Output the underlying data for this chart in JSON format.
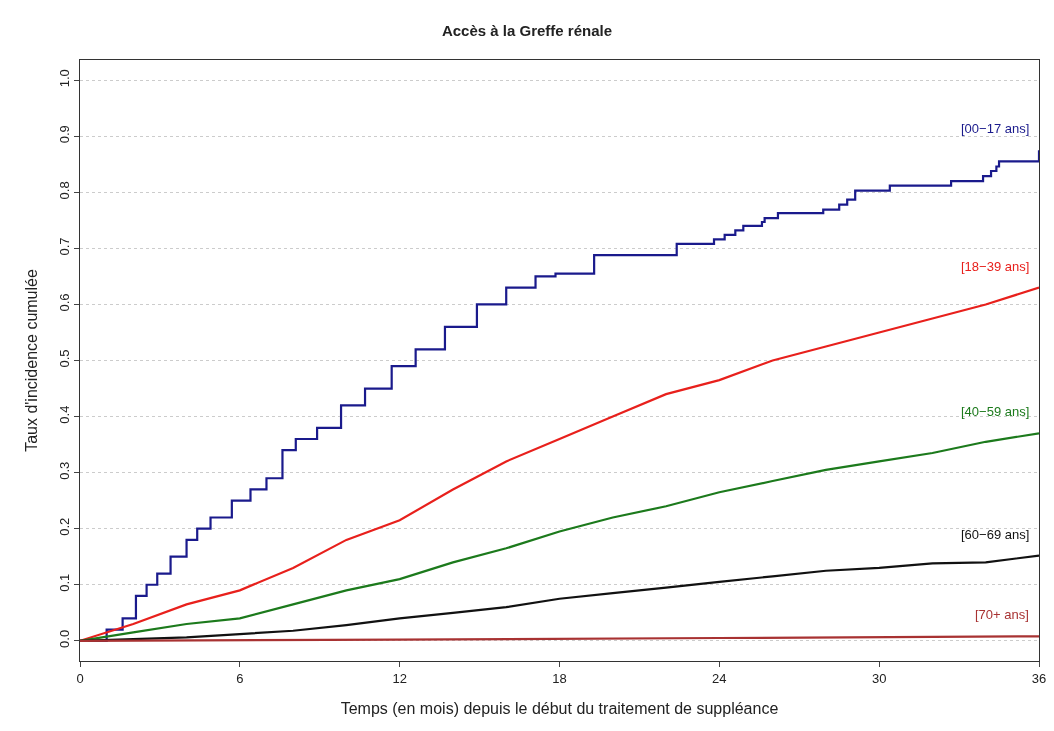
{
  "chart_data": {
    "type": "line",
    "title": "Accès à la Greffe rénale",
    "xlabel": "Temps (en mois) depuis le début du traitement de suppléance",
    "ylabel": "Taux d'incidence cumulée",
    "xlim": [
      0,
      36
    ],
    "xticks": [
      0,
      6,
      12,
      18,
      24,
      30,
      36
    ],
    "ylim": [
      -0.036,
      1.036
    ],
    "yticks": [
      {
        "value": 0,
        "label": "0.0"
      },
      0.1,
      0.2,
      0.3,
      0.4,
      0.5,
      0.6,
      0.7,
      0.8,
      0.9,
      {
        "value": 1,
        "label": "1.0"
      }
    ],
    "grid": "y",
    "legend": false,
    "series": [
      {
        "name": "[00−17 ans]",
        "color": "#1a1a8c",
        "type": "step",
        "x": [
          0,
          1.0,
          1.6,
          2.1,
          2.5,
          2.9,
          3.4,
          4.0,
          4.4,
          4.9,
          5.7,
          6.4,
          7.0,
          7.6,
          8.1,
          8.9,
          9.8,
          10.7,
          11.7,
          12.6,
          13.7,
          14.9,
          16.0,
          17.1,
          17.85,
          19.3,
          22.4,
          23.8,
          24.2,
          24.6,
          24.9,
          25.6,
          25.7,
          26.2,
          27.9,
          28.5,
          28.8,
          29.1,
          30.4,
          32.7,
          33.9,
          34.2,
          34.4,
          34.5,
          36
        ],
        "values": [
          0,
          0.02,
          0.04,
          0.08,
          0.1,
          0.12,
          0.15,
          0.18,
          0.2,
          0.22,
          0.25,
          0.27,
          0.29,
          0.34,
          0.36,
          0.38,
          0.42,
          0.45,
          0.49,
          0.52,
          0.56,
          0.6,
          0.63,
          0.65,
          0.655,
          0.688,
          0.708,
          0.716,
          0.724,
          0.732,
          0.74,
          0.747,
          0.754,
          0.763,
          0.769,
          0.778,
          0.787,
          0.803,
          0.812,
          0.82,
          0.829,
          0.838,
          0.846,
          0.855,
          0.875
        ]
      },
      {
        "name": "[18−39 ans]",
        "color": "#e8201c",
        "x": [
          0,
          2,
          4,
          6,
          8,
          10,
          12,
          14,
          16,
          18,
          20,
          22,
          24,
          26,
          28,
          30,
          32,
          34,
          36
        ],
        "values": [
          0,
          0.03,
          0.065,
          0.09,
          0.13,
          0.18,
          0.215,
          0.27,
          0.32,
          0.36,
          0.4,
          0.44,
          0.465,
          0.5,
          0.525,
          0.55,
          0.575,
          0.6,
          0.63
        ]
      },
      {
        "name": "[40−59 ans]",
        "color": "#1c7a1c",
        "x": [
          0,
          2,
          4,
          6,
          8,
          10,
          12,
          14,
          16,
          18,
          20,
          22,
          24,
          26,
          28,
          30,
          32,
          34,
          36
        ],
        "values": [
          0,
          0.015,
          0.03,
          0.04,
          0.065,
          0.09,
          0.11,
          0.14,
          0.165,
          0.195,
          0.22,
          0.24,
          0.265,
          0.285,
          0.305,
          0.32,
          0.335,
          0.355,
          0.37
        ]
      },
      {
        "name": "[60−69 ans]",
        "color": "#111111",
        "x": [
          0,
          2,
          4,
          6,
          8,
          10,
          12,
          14,
          16,
          18,
          20,
          22,
          24,
          26,
          28,
          30,
          32,
          34,
          36
        ],
        "values": [
          0,
          0.003,
          0.006,
          0.012,
          0.018,
          0.028,
          0.04,
          0.05,
          0.06,
          0.075,
          0.085,
          0.095,
          0.105,
          0.115,
          0.125,
          0.13,
          0.138,
          0.14,
          0.152
        ]
      },
      {
        "name": "[70+ ans]",
        "color": "#a83232",
        "x": [
          0,
          12,
          24,
          36
        ],
        "values": [
          0,
          0.002,
          0.005,
          0.008
        ]
      }
    ]
  }
}
